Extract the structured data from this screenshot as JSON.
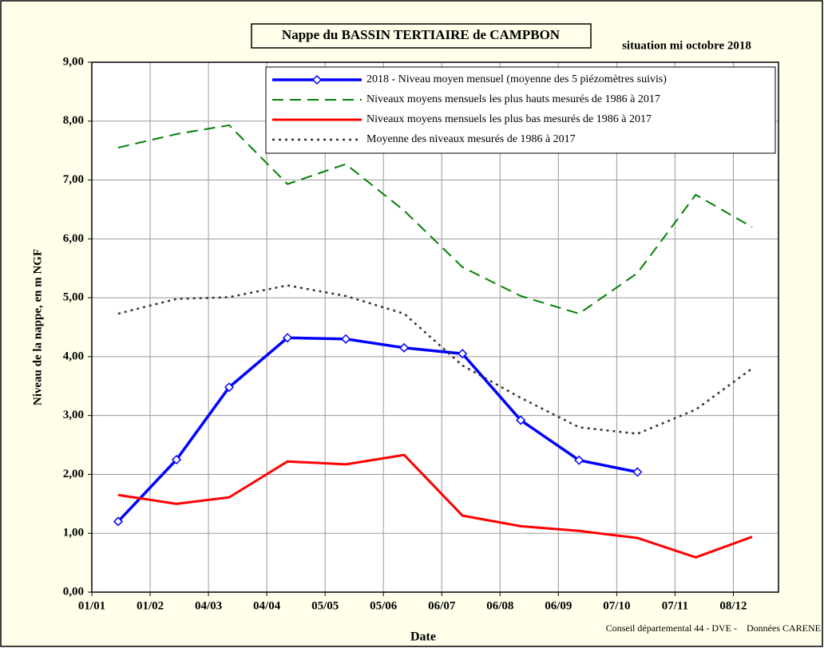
{
  "chart_data": {
    "type": "line",
    "title": "Nappe du BASSIN TERTIAIRE de CAMPBON",
    "subtitle": "situation mi octobre 2018",
    "y_label": "Niveau de la nappe, en m NGF",
    "x_label": "Date",
    "source": "Conseil départemental 44 - DVE -    Données CARENE",
    "x": [
      14,
      45,
      73,
      104,
      135,
      166,
      197,
      228,
      259,
      290,
      321,
      351
    ],
    "xlim": [
      0,
      365
    ],
    "xticks": [
      {
        "value": 0,
        "label": "01/01"
      },
      {
        "value": 31,
        "label": "01/02"
      },
      {
        "value": 62,
        "label": "04/03"
      },
      {
        "value": 93,
        "label": "04/04"
      },
      {
        "value": 124,
        "label": "05/05"
      },
      {
        "value": 155,
        "label": "05/06"
      },
      {
        "value": 186,
        "label": "06/07"
      },
      {
        "value": 217,
        "label": "06/08"
      },
      {
        "value": 248,
        "label": "06/09"
      },
      {
        "value": 279,
        "label": "07/10"
      },
      {
        "value": 310,
        "label": "07/11"
      },
      {
        "value": 341,
        "label": "08/12"
      }
    ],
    "ylim": [
      0,
      9
    ],
    "yticks": [
      {
        "value": 0,
        "label": "0,00"
      },
      {
        "value": 1,
        "label": "1,00"
      },
      {
        "value": 2,
        "label": "2,00"
      },
      {
        "value": 3,
        "label": "3,00"
      },
      {
        "value": 4,
        "label": "4,00"
      },
      {
        "value": 5,
        "label": "5,00"
      },
      {
        "value": 6,
        "label": "6,00"
      },
      {
        "value": 7,
        "label": "7,00"
      },
      {
        "value": 8,
        "label": "8,00"
      },
      {
        "value": 9,
        "label": "9,00"
      }
    ],
    "grid": true,
    "legend": "top-right",
    "series": [
      {
        "name": "2018 - Niveau moyen mensuel (moyenne des 5 piézomètres suivis)",
        "color": "#0000ff",
        "line_style": "solid",
        "marker": "diamond",
        "values": [
          1.2,
          2.25,
          3.48,
          4.32,
          4.3,
          4.15,
          4.05,
          2.92,
          2.24,
          2.04,
          null,
          null
        ]
      },
      {
        "name": "Niveaux moyens mensuels les plus hauts mesurés de 1986 à 2017",
        "color": "#008000",
        "line_style": "dashed",
        "values": [
          7.55,
          7.78,
          7.93,
          6.93,
          7.27,
          6.48,
          5.52,
          5.03,
          4.73,
          5.42,
          6.75,
          6.2
        ]
      },
      {
        "name": "Niveaux moyens mensuels les plus bas mesurés de 1986 à 2017",
        "color": "#ff0000",
        "line_style": "solid",
        "values": [
          1.65,
          1.5,
          1.61,
          2.22,
          2.17,
          2.33,
          1.3,
          1.12,
          1.04,
          0.92,
          0.59,
          0.94
        ]
      },
      {
        "name": "Moyenne des niveaux mesurés de 1986 à 2017",
        "color": "#333333",
        "line_style": "dotted",
        "values": [
          4.73,
          4.98,
          5.01,
          5.21,
          5.03,
          4.73,
          3.85,
          3.3,
          2.8,
          2.69,
          3.1,
          3.8
        ]
      }
    ]
  }
}
